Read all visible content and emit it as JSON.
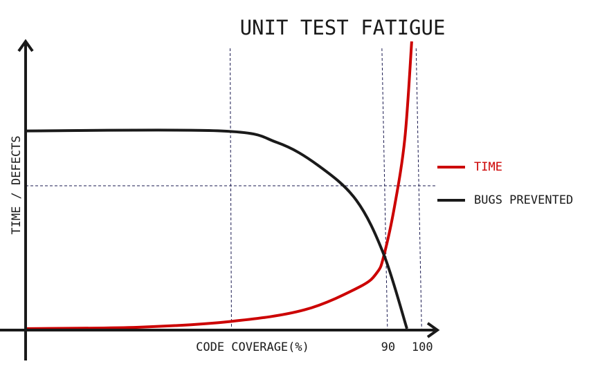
{
  "chart_data": {
    "type": "line",
    "title": "UNIT TEST FATIGUE",
    "x_label": "CODE COVERAGE(%)",
    "y_label": "TIME / DEFECTS",
    "xlim": [
      -15,
      105
    ],
    "ylim": [
      0,
      100
    ],
    "xticks": [
      90,
      100
    ],
    "reference_lines": {
      "x": [
        45
      ],
      "y": [
        50
      ]
    },
    "series": [
      {
        "name": "TIME",
        "color": "#cc0000",
        "x": [
          -15,
          18,
          45,
          66.5,
          82.7,
          87.8,
          89.8,
          92.9,
          95.9,
          97.9
        ],
        "values": [
          0.5,
          1,
          3,
          7,
          15,
          20,
          26,
          43,
          66.5,
          100
        ]
      },
      {
        "name": "BUGS PREVENTED",
        "color": "#1a1a1a",
        "x": [
          -15,
          42.3,
          58.5,
          70.6,
          81.7,
          89.8,
          96.5
        ],
        "values": [
          69,
          69,
          65,
          57,
          45,
          26,
          0.5
        ]
      }
    ]
  }
}
